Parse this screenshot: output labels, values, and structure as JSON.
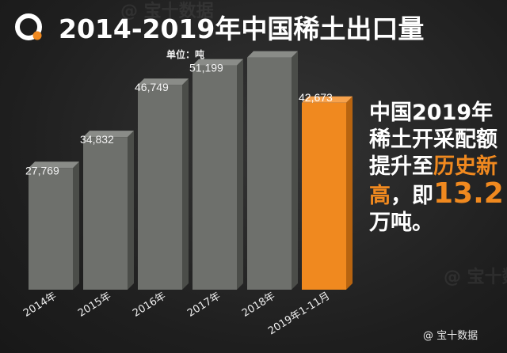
{
  "header": {
    "title": "2014-2019年中国稀土出口量",
    "unit": "单位：吨"
  },
  "chart_data": {
    "type": "bar",
    "categories": [
      "2014年",
      "2015年",
      "2016年",
      "2017年",
      "2018年",
      "2019年1-11月"
    ],
    "values": [
      27769,
      34832,
      46749,
      51199,
      53000,
      42673
    ],
    "value_labels": [
      "27,769",
      "34,832",
      "46,749",
      "51,199",
      "",
      "42,673"
    ],
    "title": "2014-2019年中国稀土出口量",
    "ylabel": "单位：吨",
    "ylim": [
      0,
      56000
    ],
    "highlight_index": 5,
    "colors": {
      "bar": "#6e706c",
      "bar_side": "#4b4d49",
      "bar_top": "#8a8c88",
      "highlight": "#f0891f",
      "highlight_side": "#b86410",
      "highlight_top": "#f7a24c"
    }
  },
  "callout": {
    "part1": "中国2019年稀土开采配额提升至",
    "part2": "历史新高",
    "part3": "，即",
    "part4": "13.2",
    "part5": "万吨。"
  },
  "footer": {
    "icon": "at-icon",
    "brand": "@ 宝十数据"
  },
  "watermark": {
    "text": "@ 宝十数据"
  }
}
